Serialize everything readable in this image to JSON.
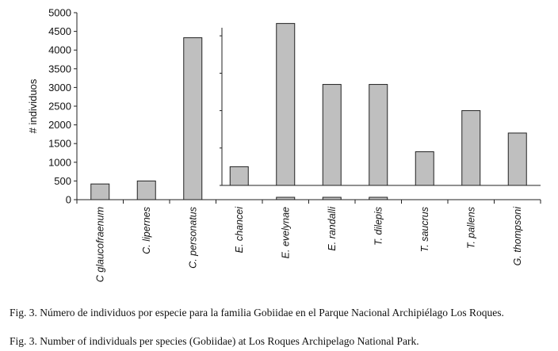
{
  "chart_data": {
    "type": "bar",
    "title": "",
    "xlabel": "",
    "ylabel": "# individuos",
    "ylim": [
      0,
      5000
    ],
    "yticks": [
      0,
      500,
      1000,
      1500,
      2000,
      2500,
      3000,
      3500,
      4000,
      4500,
      5000
    ],
    "grid": false,
    "categories": [
      "C glaucofraenum",
      "C. lipernes",
      "C. personatus",
      "E. chancei",
      "E.  evelynae",
      "E. randalli",
      "T. dilepis",
      "T. saucrus",
      "T. pallens",
      "G. thompsoni"
    ],
    "values": [
      420,
      500,
      4330,
      500,
      4330,
      2700,
      2700,
      900,
      2000,
      1400
    ],
    "bar_color": "#bfbfbf",
    "bar_edge_color": "#222222"
  },
  "captions": {
    "es": "Fig. 3. Número de individuos por especie para la familia Gobiidae en el Parque Nacional Archipiélago Los Roques.",
    "en": "Fig. 3. Number of individuals per species (Gobiidae) at Los Roques Archipelago National Park."
  }
}
